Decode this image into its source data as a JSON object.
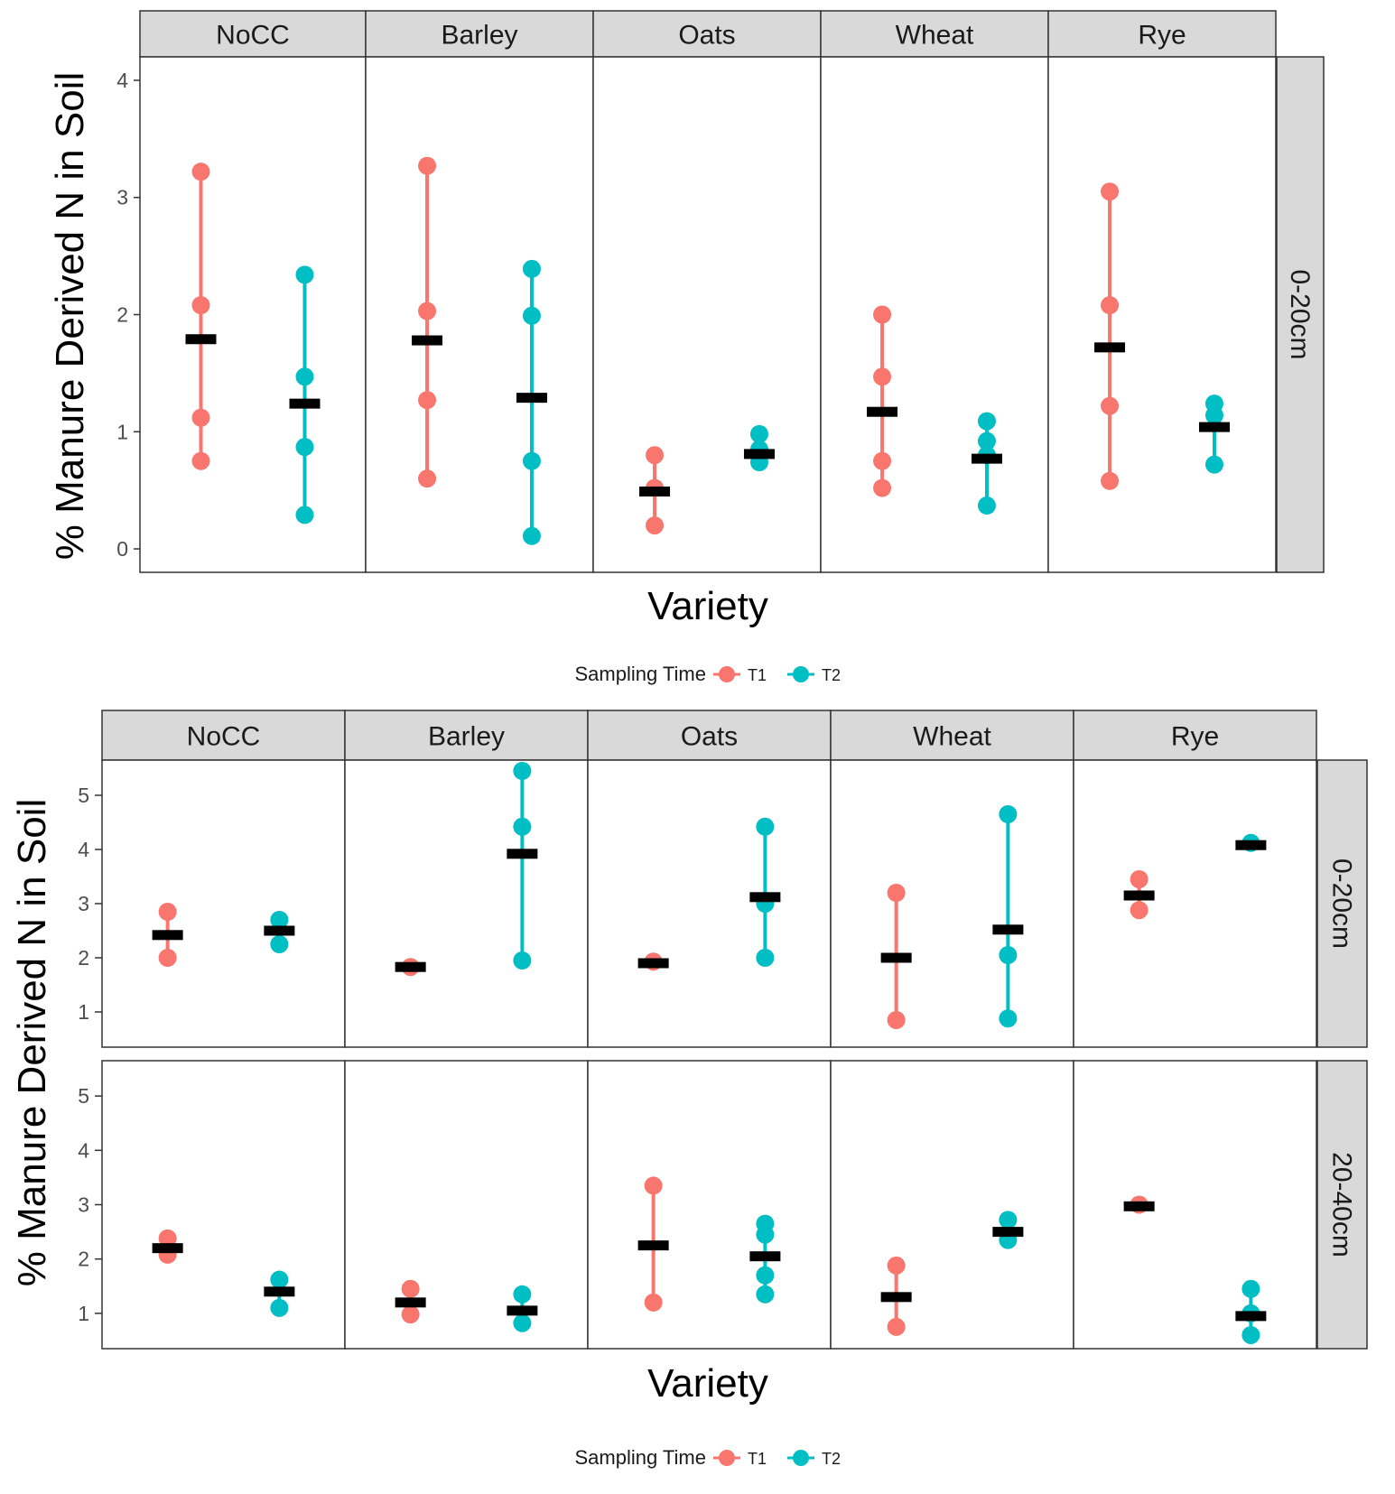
{
  "colors": {
    "T1": "#F8766D",
    "T2": "#00BFC4",
    "mean": "#000000",
    "strip": "#D9D9D9",
    "border": "#333333"
  },
  "chart_data": [
    {
      "type": "scatter",
      "xlabel": "Variety",
      "ylabel": "% Manure Derived N in Soil",
      "ylim": [
        -0.2,
        4.2
      ],
      "yticks": [
        "0",
        "1",
        "2",
        "3",
        "4"
      ],
      "facets_col": [
        "NoCC",
        "Barley",
        "Oats",
        "Wheat",
        "Rye"
      ],
      "facets_row": [
        "0-20cm"
      ],
      "legend": {
        "title": "Sampling Time",
        "position": "bottom",
        "items": [
          "T1",
          "T2"
        ]
      },
      "grid": false,
      "series": [
        {
          "name": "T1",
          "points": [
            [
              [
                3.22,
                2.08,
                1.12,
                0.75
              ],
              [
                3.27,
                2.03,
                1.27,
                0.6
              ],
              [
                0.8,
                0.52,
                0.2
              ],
              [
                2.0,
                1.47,
                0.75,
                0.52
              ],
              [
                3.05,
                2.08,
                1.22,
                0.58
              ]
            ]
          ],
          "means": [
            [
              1.79,
              1.78,
              0.49,
              1.17,
              1.72
            ]
          ]
        },
        {
          "name": "T2",
          "points": [
            [
              [
                2.34,
                1.47,
                0.87,
                0.29
              ],
              [
                2.39,
                1.99,
                0.75,
                0.11
              ],
              [
                0.98,
                0.85,
                0.74
              ],
              [
                1.09,
                0.92,
                0.8,
                0.37
              ],
              [
                1.24,
                1.14,
                0.72
              ]
            ]
          ],
          "means": [
            [
              1.24,
              1.29,
              0.81,
              0.77,
              1.04
            ]
          ]
        }
      ]
    },
    {
      "type": "scatter",
      "xlabel": "Variety",
      "ylabel": "% Manure Derived N in Soil",
      "ylim": [
        0.35,
        5.65
      ],
      "yticks": [
        "1",
        "2",
        "3",
        "4",
        "5"
      ],
      "facets_col": [
        "NoCC",
        "Barley",
        "Oats",
        "Wheat",
        "Rye"
      ],
      "facets_row": [
        "0-20cm",
        "20-40cm"
      ],
      "legend": {
        "title": "Sampling Time",
        "position": "bottom",
        "items": [
          "T1",
          "T2"
        ]
      },
      "grid": false,
      "series": [
        {
          "name": "T1",
          "points": [
            [
              [
                2.85,
                2.0
              ],
              [
                1.83
              ],
              [
                1.93
              ],
              [
                3.2,
                0.85
              ],
              [
                3.45,
                2.88
              ]
            ],
            [
              [
                2.38,
                2.08
              ],
              [
                1.45,
                0.98
              ],
              [
                3.35,
                1.2
              ],
              [
                1.88,
                0.75
              ],
              [
                3.0
              ]
            ]
          ],
          "means": [
            [
              2.42,
              1.83,
              1.9,
              2.0,
              3.15
            ],
            [
              2.2,
              1.2,
              2.25,
              1.3,
              2.97
            ]
          ]
        },
        {
          "name": "T2",
          "points": [
            [
              [
                2.7,
                2.25
              ],
              [
                5.45,
                4.42,
                1.95
              ],
              [
                4.42,
                3.0,
                2.0
              ],
              [
                4.65,
                2.05,
                0.88
              ],
              [
                4.12
              ]
            ],
            [
              [
                1.62,
                1.1
              ],
              [
                1.35,
                0.82
              ],
              [
                2.65,
                2.45,
                1.7,
                1.35
              ],
              [
                2.72,
                2.35
              ],
              [
                1.45,
                1.0,
                0.6
              ]
            ]
          ],
          "means": [
            [
              2.5,
              3.92,
              3.12,
              2.52,
              4.08
            ],
            [
              1.4,
              1.05,
              2.05,
              2.5,
              0.95
            ]
          ]
        }
      ]
    }
  ]
}
